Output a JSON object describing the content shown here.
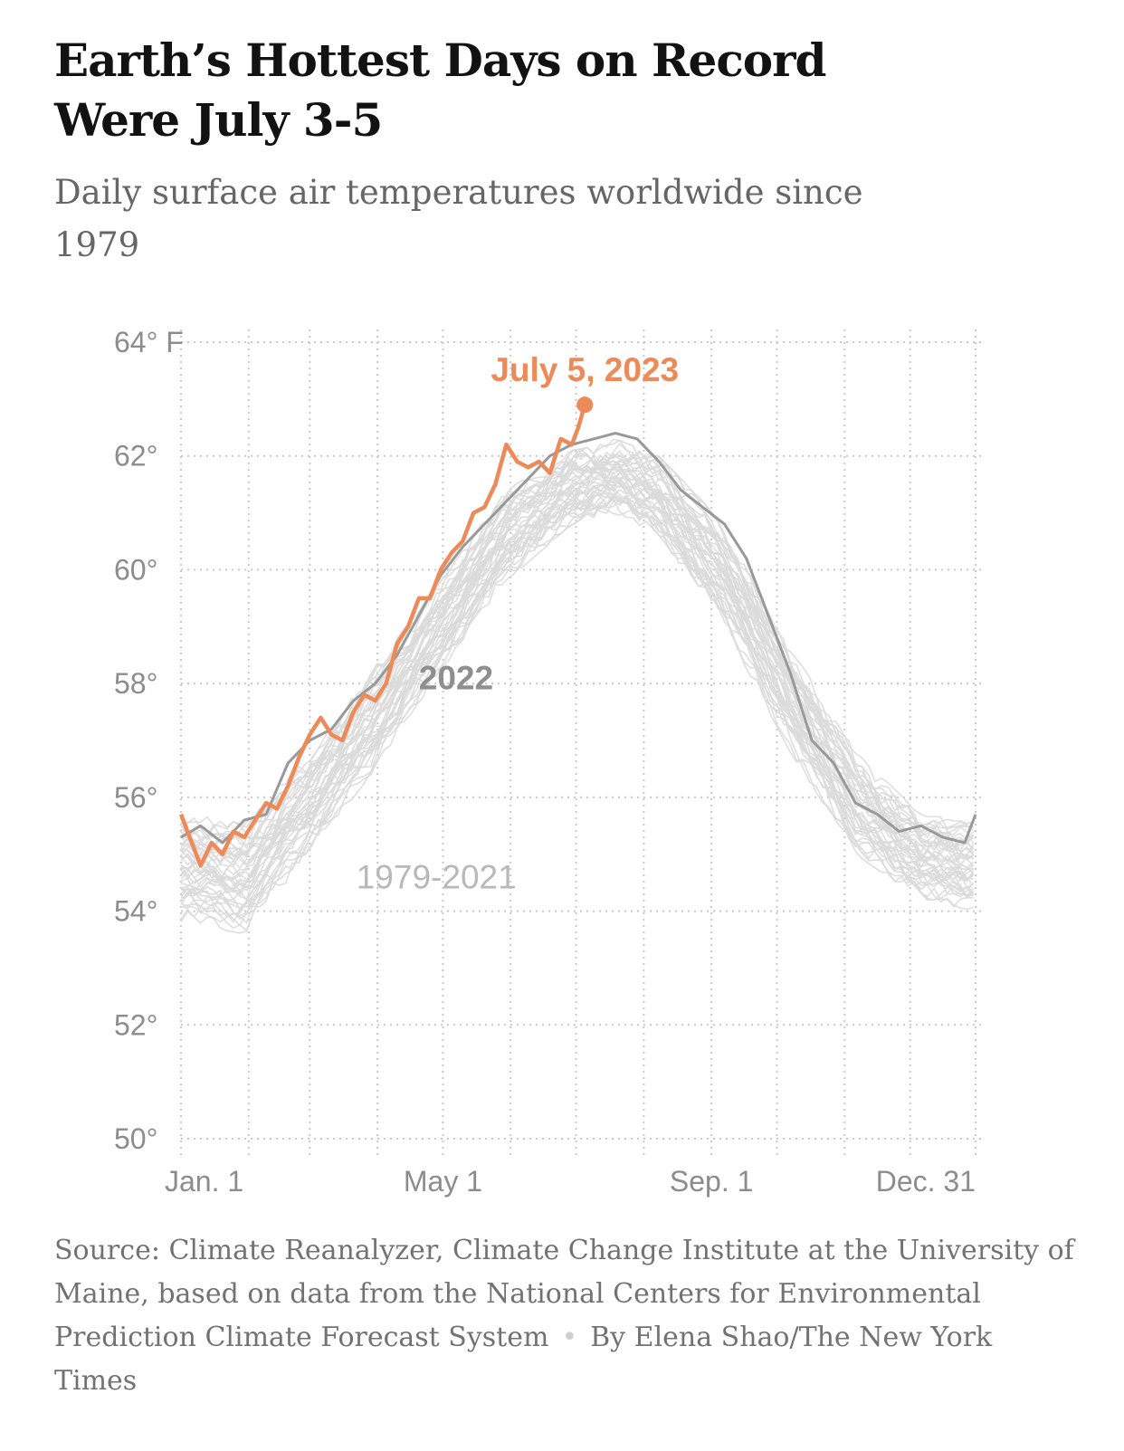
{
  "header": {
    "title": "Earth’s Hottest Days on Record Were July 3-5",
    "subtitle": "Daily surface air temperatures worldwide since 1979"
  },
  "footer": {
    "source": "Source: Climate Reanalyzer, Climate Change Institute at the University of Maine, based on data from the National Centers for Environmental Prediction Climate Forecast System",
    "separator": "•",
    "byline": "By Elena Shao/The New York Times"
  },
  "chart_data": {
    "type": "line",
    "title": "Earth’s Hottest Days on Record Were July 3-5",
    "subtitle": "Daily surface air temperatures worldwide since 1979",
    "x_unit": "day of year",
    "x_range": [
      1,
      365
    ],
    "ylim": [
      50,
      64
    ],
    "y_unit": "°F",
    "y_ticks": [
      {
        "value": 64,
        "label": "64° F"
      },
      {
        "value": 62,
        "label": "62°"
      },
      {
        "value": 60,
        "label": "60°"
      },
      {
        "value": 58,
        "label": "58°"
      },
      {
        "value": 56,
        "label": "56°"
      },
      {
        "value": 54,
        "label": "54°"
      },
      {
        "value": 52,
        "label": "52°"
      },
      {
        "value": 50,
        "label": "50°"
      }
    ],
    "x_ticks": [
      {
        "day": 1,
        "label": "Jan. 1"
      },
      {
        "day": 121,
        "label": "May 1"
      },
      {
        "day": 244,
        "label": "Sep. 1"
      },
      {
        "day": 365,
        "label": "Dec. 31"
      }
    ],
    "grid": true,
    "colors": {
      "y2023": "#ee8a57",
      "y2022": "#999999",
      "historical": "#dadada"
    },
    "annotations": [
      {
        "text": "July 5, 2023",
        "series": "2023"
      },
      {
        "text": "2022",
        "series": "2022"
      },
      {
        "text": "1979-2021",
        "series": "1979-2021"
      }
    ],
    "series": [
      {
        "name": "2023",
        "x": [
          1,
          5,
          10,
          15,
          20,
          25,
          30,
          35,
          40,
          45,
          50,
          55,
          60,
          65,
          70,
          75,
          80,
          85,
          90,
          95,
          100,
          105,
          110,
          115,
          120,
          125,
          130,
          135,
          140,
          145,
          150,
          155,
          160,
          165,
          170,
          175,
          180,
          183,
          186
        ],
        "y": [
          55.7,
          55.3,
          54.8,
          55.2,
          55.0,
          55.4,
          55.3,
          55.6,
          55.9,
          55.8,
          56.2,
          56.7,
          57.1,
          57.4,
          57.1,
          57.0,
          57.5,
          57.8,
          57.7,
          58.0,
          58.7,
          59.0,
          59.5,
          59.5,
          60.0,
          60.3,
          60.5,
          61.0,
          61.1,
          61.5,
          62.2,
          61.9,
          61.8,
          61.9,
          61.7,
          62.3,
          62.2,
          62.5,
          62.9
        ]
      },
      {
        "name": "2022",
        "x": [
          1,
          10,
          20,
          30,
          40,
          50,
          60,
          70,
          80,
          90,
          100,
          110,
          120,
          130,
          140,
          150,
          160,
          170,
          180,
          190,
          200,
          210,
          220,
          230,
          240,
          250,
          260,
          270,
          280,
          290,
          300,
          310,
          320,
          330,
          340,
          350,
          360,
          365
        ],
        "y": [
          55.3,
          55.5,
          55.2,
          55.6,
          55.7,
          56.6,
          57.0,
          57.2,
          57.7,
          58.0,
          58.5,
          59.2,
          59.9,
          60.4,
          60.8,
          61.2,
          61.6,
          62.0,
          62.2,
          62.3,
          62.4,
          62.3,
          61.9,
          61.4,
          61.1,
          60.8,
          60.2,
          59.2,
          58.2,
          57.0,
          56.6,
          55.9,
          55.7,
          55.4,
          55.5,
          55.3,
          55.2,
          55.7
        ]
      },
      {
        "name": "1979-2021 (range)",
        "x": [
          1,
          30,
          60,
          90,
          120,
          150,
          180,
          200,
          220,
          250,
          280,
          310,
          340,
          365
        ],
        "y_min": [
          53.8,
          53.6,
          55.0,
          56.5,
          58.2,
          59.8,
          60.8,
          61.0,
          60.6,
          59.0,
          56.8,
          55.0,
          54.2,
          54.0
        ],
        "y_max": [
          55.7,
          55.6,
          56.8,
          58.3,
          59.8,
          61.4,
          62.1,
          62.3,
          62.0,
          60.8,
          58.7,
          56.8,
          55.7,
          55.6
        ]
      }
    ]
  }
}
